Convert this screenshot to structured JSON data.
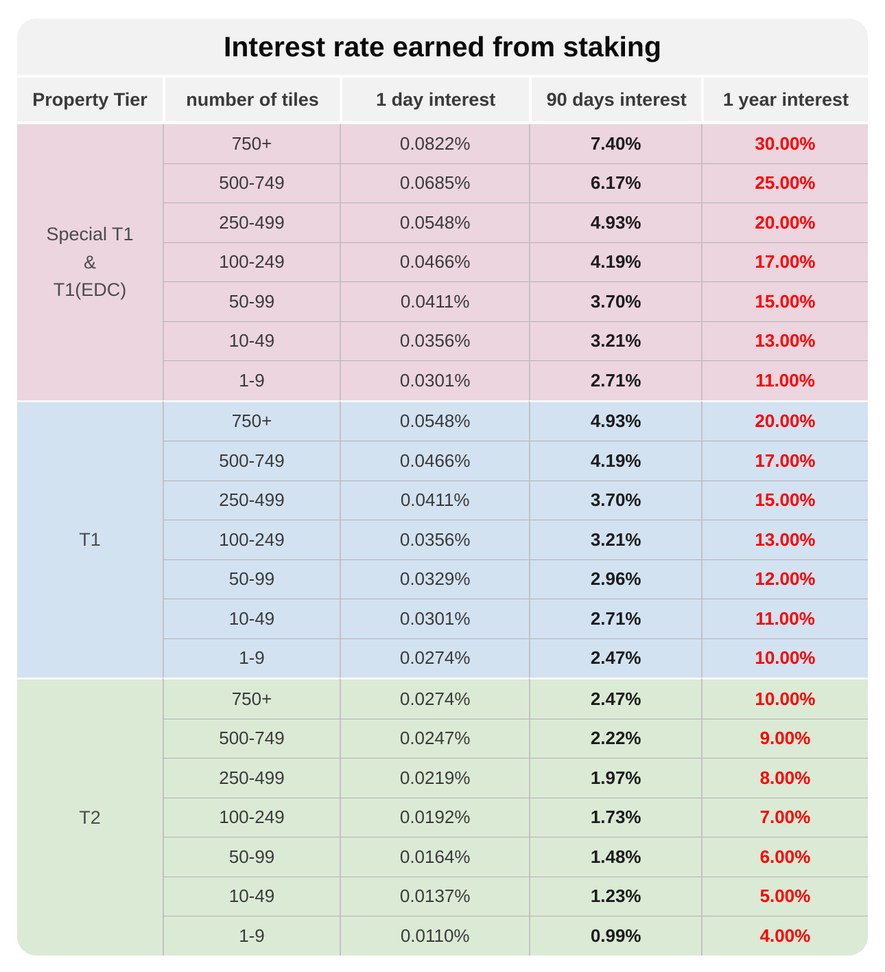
{
  "chart_data": {
    "type": "table",
    "title": "Interest rate earned from staking",
    "columns": [
      "Property Tier",
      "number of tiles",
      "1 day interest",
      "90 days interest",
      "1 year interest"
    ],
    "groups": [
      {
        "name": "special-t1-t1edc",
        "tier_lines": [
          "Special T1",
          "&",
          "T1(EDC)"
        ],
        "bg": "#ecd5de",
        "rows": [
          [
            "750+",
            "0.0822%",
            "7.40%",
            "30.00%"
          ],
          [
            "500-749",
            "0.0685%",
            "6.17%",
            "25.00%"
          ],
          [
            "250-499",
            "0.0548%",
            "4.93%",
            "20.00%"
          ],
          [
            "100-249",
            "0.0466%",
            "4.19%",
            "17.00%"
          ],
          [
            "50-99",
            "0.0411%",
            "3.70%",
            "15.00%"
          ],
          [
            "10-49",
            "0.0356%",
            "3.21%",
            "13.00%"
          ],
          [
            "1-9",
            "0.0301%",
            "2.71%",
            "11.00%"
          ]
        ]
      },
      {
        "name": "t1",
        "tier_lines": [
          "T1"
        ],
        "bg": "#d2e2f1",
        "rows": [
          [
            "750+",
            "0.0548%",
            "4.93%",
            "20.00%"
          ],
          [
            "500-749",
            "0.0466%",
            "4.19%",
            "17.00%"
          ],
          [
            "250-499",
            "0.0411%",
            "3.70%",
            "15.00%"
          ],
          [
            "100-249",
            "0.0356%",
            "3.21%",
            "13.00%"
          ],
          [
            "50-99",
            "0.0329%",
            "2.96%",
            "12.00%"
          ],
          [
            "10-49",
            "0.0301%",
            "2.71%",
            "11.00%"
          ],
          [
            "1-9",
            "0.0274%",
            "2.47%",
            "10.00%"
          ]
        ]
      },
      {
        "name": "t2",
        "tier_lines": [
          "T2"
        ],
        "bg": "#dbead5",
        "rows": [
          [
            "750+",
            "0.0274%",
            "2.47%",
            "10.00%"
          ],
          [
            "500-749",
            "0.0247%",
            "2.22%",
            "9.00%"
          ],
          [
            "250-499",
            "0.0219%",
            "1.97%",
            "8.00%"
          ],
          [
            "100-249",
            "0.0192%",
            "1.73%",
            "7.00%"
          ],
          [
            "50-99",
            "0.0164%",
            "1.48%",
            "6.00%"
          ],
          [
            "10-49",
            "0.0137%",
            "1.23%",
            "5.00%"
          ],
          [
            "1-9",
            "0.0110%",
            "0.99%",
            "4.00%"
          ]
        ]
      }
    ],
    "colors": {
      "card_background": "#f3f2f2",
      "year_interest_text": "#ff0000",
      "bold_interest_text": "#1c1c1c",
      "header_text": "#3a3a3a",
      "title_text": "#0a0a0a"
    }
  }
}
